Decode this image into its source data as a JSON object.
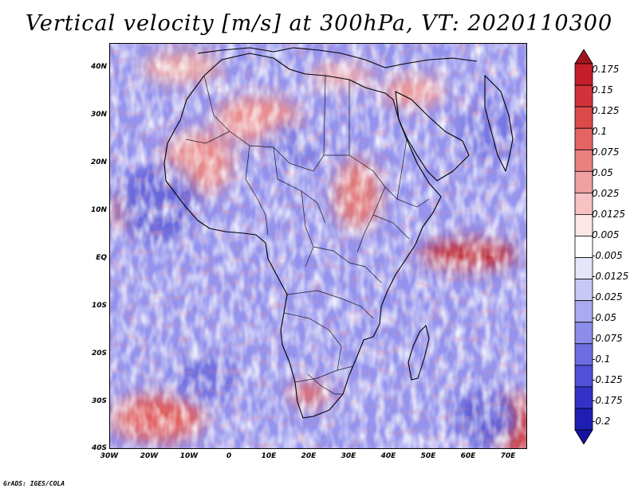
{
  "title": "Vertical velocity [m/s] at 300hPa, VT: 2020110300",
  "credit": "GrADS: IGES/COLA",
  "map": {
    "lon_range": [
      -30,
      75
    ],
    "lat_range": [
      -40,
      45
    ],
    "lat_labels": [
      "40N",
      "30N",
      "20N",
      "10N",
      "EQ",
      "10S",
      "20S",
      "30S",
      "40S"
    ],
    "lon_labels": [
      "30W",
      "20W",
      "10W",
      "0",
      "10E",
      "20E",
      "30E",
      "40E",
      "50E",
      "60E",
      "70E"
    ]
  },
  "colorbar": {
    "labels": [
      "0.175",
      "0.15",
      "0.125",
      "0.1",
      "0.075",
      "0.05",
      "0.025",
      "0.0125",
      "0.005",
      "-0.005",
      "-0.0125",
      "-0.025",
      "-0.05",
      "-0.075",
      "-0.1",
      "-0.125",
      "-0.175",
      "-0.2"
    ],
    "colors": [
      "#a0141e",
      "#c41e2a",
      "#d2323a",
      "#dc4a4a",
      "#e46464",
      "#ea8080",
      "#f0a0a0",
      "#f6c2c2",
      "#fde6e6",
      "#ffffff",
      "#e6e6fb",
      "#c8c8f6",
      "#aaaaf0",
      "#8c8cea",
      "#6e6ee2",
      "#5050d8",
      "#3232c8",
      "#1e1eb4",
      "#1414a0"
    ]
  }
}
